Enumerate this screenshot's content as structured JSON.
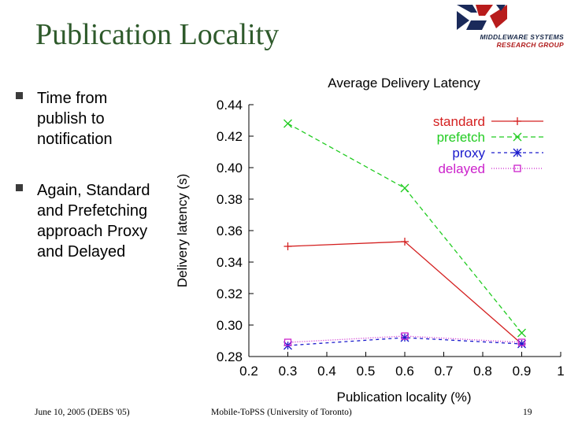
{
  "slide": {
    "title": "Publication Locality",
    "bullets": [
      "Time from publish to notification",
      "Again, Standard and Prefetching approach Proxy and Delayed"
    ],
    "footer": {
      "date": "June 10, 2005 (DEBS '05)",
      "project": "Mobile-ToPSS (University of Toronto)",
      "page": "19"
    },
    "logo": {
      "line1": "MIDDLEWARE SYSTEMS",
      "line2": "RESEARCH GROUP"
    }
  },
  "chart_data": {
    "type": "line",
    "title": "Average Delivery Latency",
    "xlabel": "Publication locality (%)",
    "ylabel": "Delivery latency (s)",
    "xlim": [
      0.2,
      1.0
    ],
    "ylim": [
      0.28,
      0.44
    ],
    "xticks": [
      "0.2",
      "0.3",
      "0.4",
      "0.5",
      "0.6",
      "0.7",
      "0.8",
      "0.9",
      "1"
    ],
    "yticks": [
      "0.28",
      "0.30",
      "0.32",
      "0.34",
      "0.36",
      "0.38",
      "0.40",
      "0.42",
      "0.44"
    ],
    "x": [
      0.3,
      0.6,
      0.9
    ],
    "grid": false,
    "legend_position": "top-right",
    "series": [
      {
        "name": "standard",
        "values": [
          0.35,
          0.353,
          0.288
        ],
        "color": "#d42020",
        "marker": "plus",
        "dash": ""
      },
      {
        "name": "prefetch",
        "values": [
          0.428,
          0.387,
          0.295
        ],
        "color": "#22cc22",
        "marker": "x",
        "dash": "6,4"
      },
      {
        "name": "proxy",
        "values": [
          0.287,
          0.292,
          0.288
        ],
        "color": "#1a1acc",
        "marker": "star",
        "dash": "4,4"
      },
      {
        "name": "delayed",
        "values": [
          0.289,
          0.293,
          0.289
        ],
        "color": "#cc22cc",
        "marker": "square",
        "dash": "1,2"
      }
    ]
  }
}
